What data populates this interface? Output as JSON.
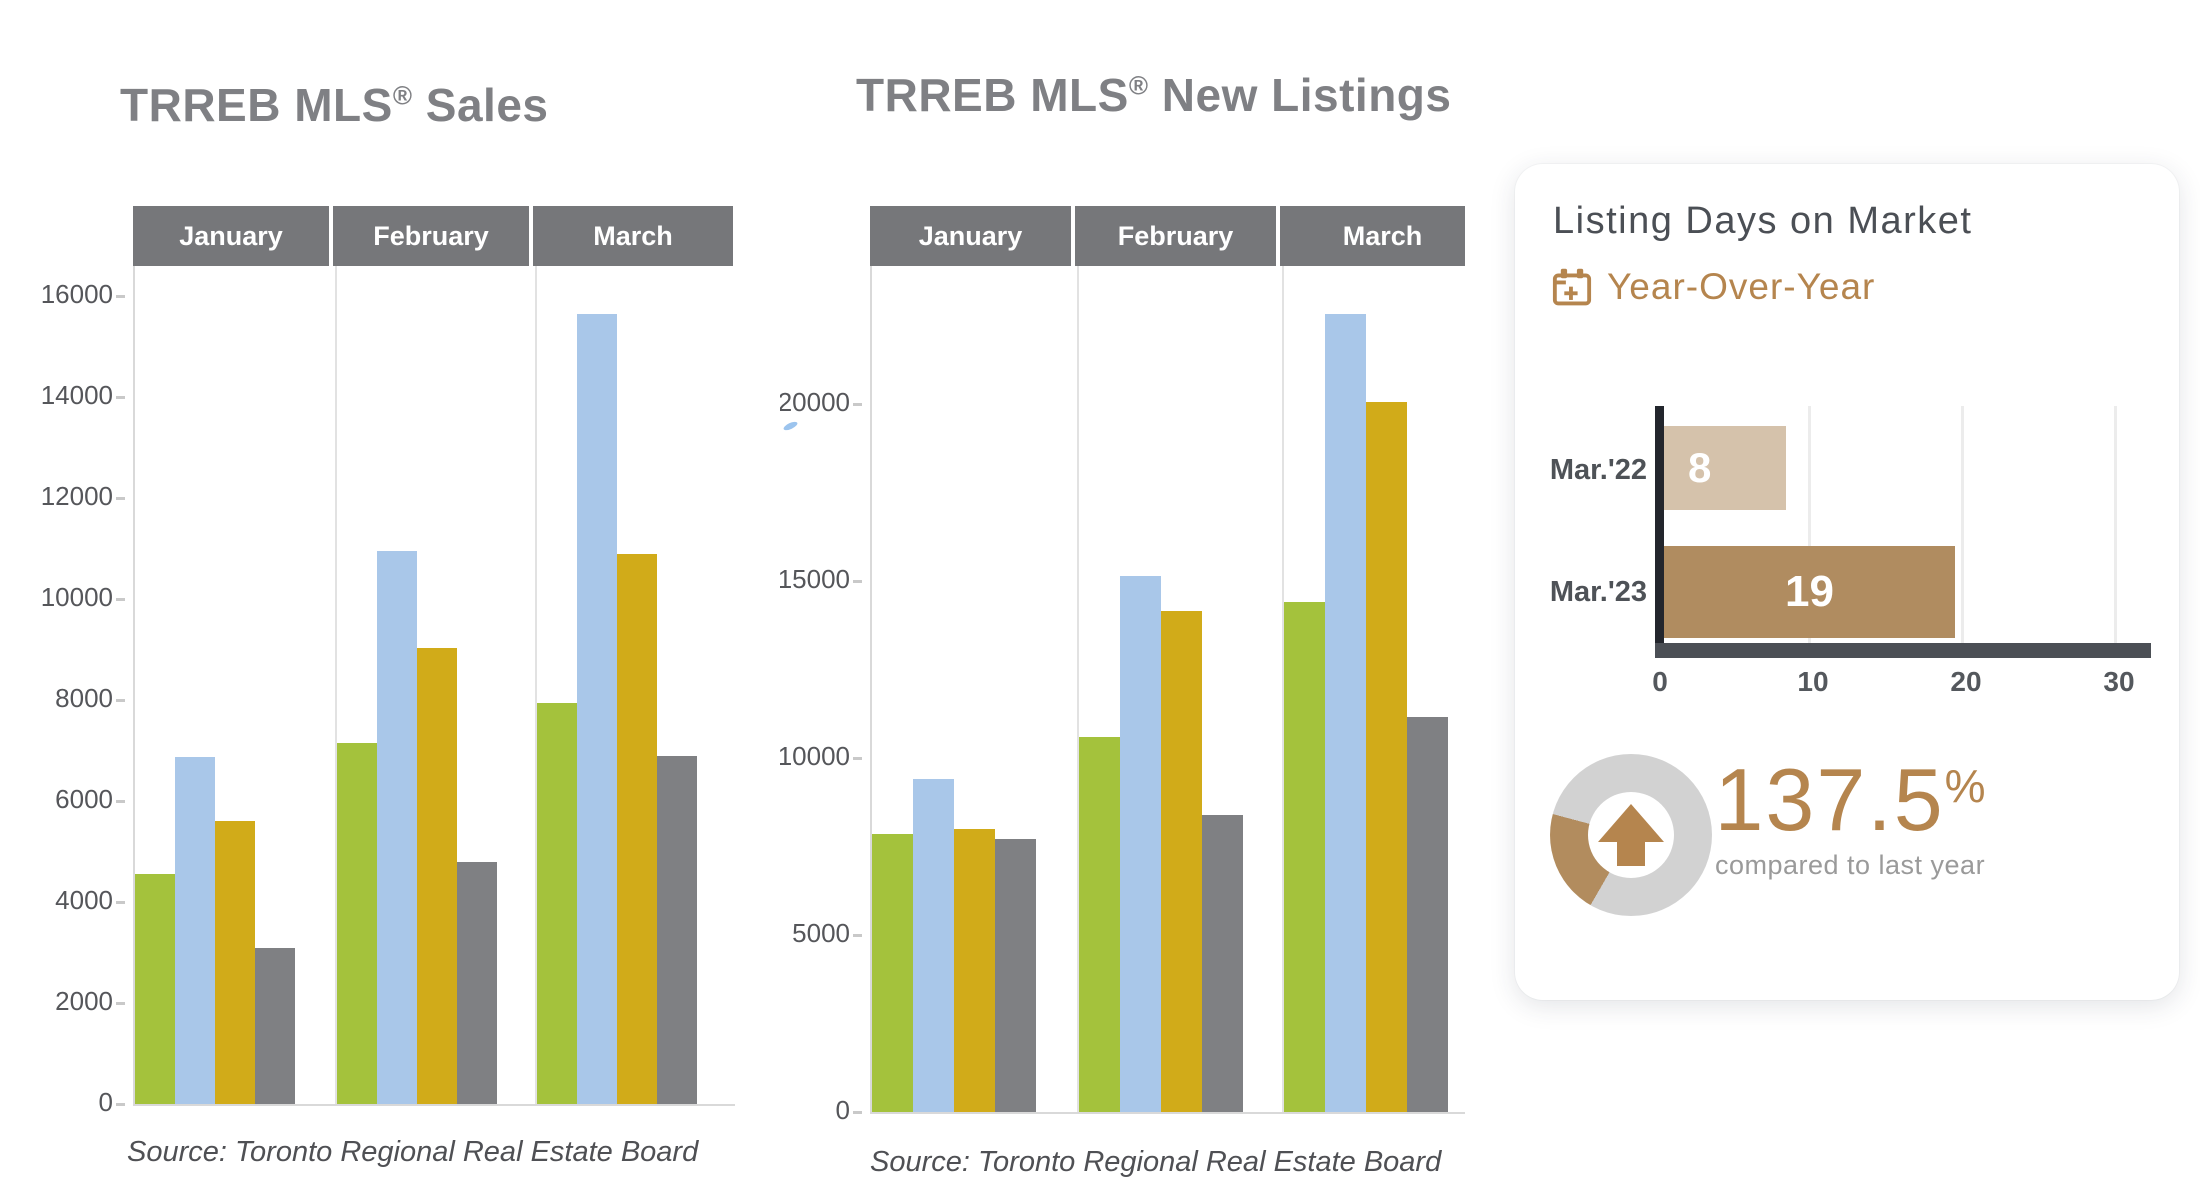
{
  "titles": {
    "sales_prefix": "TRREB MLS",
    "reg": "®",
    "sales_suffix": " Sales",
    "listings_prefix": "TRREB MLS",
    "listings_suffix": " New Listings"
  },
  "sources": {
    "sales": "Source: Toronto Regional Real Estate Board",
    "listings": "Source: Toronto Regional Real Estate Board"
  },
  "card": {
    "title": "Listing Days on Market",
    "subtitle": "Year-Over-Year",
    "accent_color": "#b5854e",
    "donut_gray": "#d2d2d2",
    "donut_tan": "#b28c5e",
    "kpi_value": "137.5",
    "kpi_unit": "%",
    "kpi_caption": "compared to last year"
  },
  "chart_data": [
    {
      "type": "bar",
      "title": "TRREB MLS® Sales",
      "categories": [
        "January",
        "February",
        "March"
      ],
      "series": [
        {
          "name": "green",
          "color": "#a4c23c",
          "values": [
            4550,
            7150,
            7950
          ]
        },
        {
          "name": "blue",
          "color": "#a9c7e9",
          "values": [
            6870,
            10950,
            15650
          ]
        },
        {
          "name": "gold",
          "color": "#d1ab19",
          "values": [
            5600,
            9030,
            10890
          ]
        },
        {
          "name": "gray",
          "color": "#7f8083",
          "values": [
            3100,
            4800,
            6900
          ]
        }
      ],
      "ylim": [
        0,
        16600
      ],
      "yticks": [
        0,
        2000,
        4000,
        6000,
        8000,
        10000,
        12000,
        14000,
        16000
      ],
      "grid": "column-separators-only",
      "legend": "none",
      "source": "Source: Toronto Regional Real Estate Board"
    },
    {
      "type": "bar",
      "title": "TRREB MLS® New Listings",
      "categories": [
        "January",
        "February",
        "March"
      ],
      "series": [
        {
          "name": "green",
          "color": "#a4c23c",
          "values": [
            7850,
            10600,
            14400
          ]
        },
        {
          "name": "blue",
          "color": "#a9c7e9",
          "values": [
            9400,
            15150,
            22550
          ]
        },
        {
          "name": "gold",
          "color": "#d1ab19",
          "values": [
            8000,
            14150,
            20050
          ]
        },
        {
          "name": "gray",
          "color": "#7f8083",
          "values": [
            7700,
            8400,
            11150
          ]
        }
      ],
      "ylim": [
        0,
        23900
      ],
      "yticks": [
        0,
        5000,
        10000,
        15000,
        20000
      ],
      "grid": "column-separators-only",
      "legend": "none",
      "source": "Source: Toronto Regional Real Estate Board"
    },
    {
      "type": "bar-horizontal",
      "title": "Listing Days on Market",
      "subtitle": "Year-Over-Year",
      "categories": [
        "Mar.'22",
        "Mar.'23"
      ],
      "values": [
        8,
        19
      ],
      "bar_colors": [
        "#d5c2ab",
        "#b08c60"
      ],
      "xlim": [
        0,
        31
      ],
      "xticks": [
        0,
        10,
        20,
        30
      ],
      "kpi": {
        "value": "137.5",
        "unit": "%",
        "caption": "compared to last year"
      }
    }
  ]
}
